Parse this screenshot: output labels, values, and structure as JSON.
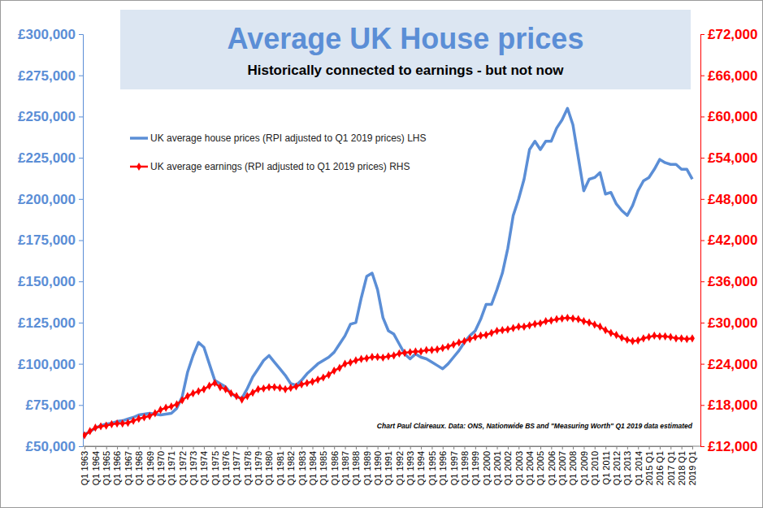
{
  "chart_data": {
    "type": "line",
    "title": "Average UK House prices",
    "subtitle": "Historically connected to earnings - but not now",
    "annotation": "Chart Paul Claireaux. Data: ONS, Nationwide BS and \"Measuring Worth\" Q1 2019 data estimated",
    "grid": false,
    "legend": "upper left",
    "xlim": [
      1963,
      2019
    ],
    "xticks": [
      {
        "value": 1963,
        "label": "Q1 1963"
      },
      {
        "value": 1964,
        "label": "Q1 1964"
      },
      {
        "value": 1965,
        "label": "Q1 1965"
      },
      {
        "value": 1966,
        "label": "Q1 1966"
      },
      {
        "value": 1967,
        "label": "Q1 1967"
      },
      {
        "value": 1968,
        "label": "Q1 1968"
      },
      {
        "value": 1969,
        "label": "Q1 1969"
      },
      {
        "value": 1970,
        "label": "Q1 1970"
      },
      {
        "value": 1971,
        "label": "Q1 1971"
      },
      {
        "value": 1972,
        "label": "Q1 1972"
      },
      {
        "value": 1973,
        "label": "Q1 1973"
      },
      {
        "value": 1974,
        "label": "Q1 1974"
      },
      {
        "value": 1975,
        "label": "Q1 1975"
      },
      {
        "value": 1976,
        "label": "Q1 1976"
      },
      {
        "value": 1977,
        "label": "Q1 1977"
      },
      {
        "value": 1978,
        "label": "Q1 1978"
      },
      {
        "value": 1979,
        "label": "Q1 1979"
      },
      {
        "value": 1980,
        "label": "Q1 1980"
      },
      {
        "value": 1981,
        "label": "Q1 1981"
      },
      {
        "value": 1982,
        "label": "Q1 1982"
      },
      {
        "value": 1983,
        "label": "Q1 1983"
      },
      {
        "value": 1984,
        "label": "Q1 1984"
      },
      {
        "value": 1985,
        "label": "Q1 1985"
      },
      {
        "value": 1986,
        "label": "Q1 1986"
      },
      {
        "value": 1987,
        "label": "Q1 1987"
      },
      {
        "value": 1988,
        "label": "Q1 1988"
      },
      {
        "value": 1989,
        "label": "Q1 1989"
      },
      {
        "value": 1990,
        "label": "Q1 1990"
      },
      {
        "value": 1991,
        "label": "Q1 1991"
      },
      {
        "value": 1992,
        "label": "Q1 1992"
      },
      {
        "value": 1993,
        "label": "Q1 1993"
      },
      {
        "value": 1994,
        "label": "Q1 1994"
      },
      {
        "value": 1995,
        "label": "Q1 1995"
      },
      {
        "value": 1996,
        "label": "Q1 1996"
      },
      {
        "value": 1997,
        "label": "Q1 1997"
      },
      {
        "value": 1998,
        "label": "Q1 1998"
      },
      {
        "value": 1999,
        "label": "Q1 1999"
      },
      {
        "value": 2000,
        "label": "Q1 2000"
      },
      {
        "value": 2001,
        "label": "Q1 2001"
      },
      {
        "value": 2002,
        "label": "Q1 2002"
      },
      {
        "value": 2003,
        "label": "Q1 2003"
      },
      {
        "value": 2004,
        "label": "Q1 2004"
      },
      {
        "value": 2005,
        "label": "Q1 2005"
      },
      {
        "value": 2006,
        "label": "Q1 2006"
      },
      {
        "value": 2007,
        "label": "Q1 2007"
      },
      {
        "value": 2008,
        "label": "Q1 2008"
      },
      {
        "value": 2009,
        "label": "Q1 2009"
      },
      {
        "value": 2010,
        "label": "Q1 2010"
      },
      {
        "value": 2011,
        "label": "Q1 2011"
      },
      {
        "value": 2012,
        "label": "Q1 2012"
      },
      {
        "value": 2013,
        "label": "Q1 2013"
      },
      {
        "value": 2014,
        "label": "Q1 2014"
      },
      {
        "value": 2015,
        "label": "2015 Q1"
      },
      {
        "value": 2016,
        "label": "2016 Q1"
      },
      {
        "value": 2017,
        "label": "2017 Q1"
      },
      {
        "value": 2018,
        "label": "2018 Q1"
      },
      {
        "value": 2019,
        "label": "2019 Q1"
      }
    ],
    "ylim": [
      50000,
      300000
    ],
    "yticks": [
      {
        "value": 50000,
        "label": "£50,000"
      },
      {
        "value": 75000,
        "label": "£75,000"
      },
      {
        "value": 100000,
        "label": "£100,000"
      },
      {
        "value": 125000,
        "label": "£125,000"
      },
      {
        "value": 150000,
        "label": "£150,000"
      },
      {
        "value": 175000,
        "label": "£175,000"
      },
      {
        "value": 200000,
        "label": "£200,000"
      },
      {
        "value": 225000,
        "label": "£225,000"
      },
      {
        "value": 250000,
        "label": "£250,000"
      },
      {
        "value": 275000,
        "label": "£275,000"
      },
      {
        "value": 300000,
        "label": "£300,000"
      }
    ],
    "y2lim": [
      12000,
      72000
    ],
    "y2ticks": [
      {
        "value": 12000,
        "label": "£12,000"
      },
      {
        "value": 18000,
        "label": "£18,000"
      },
      {
        "value": 24000,
        "label": "£24,000"
      },
      {
        "value": 30000,
        "label": "£30,000"
      },
      {
        "value": 36000,
        "label": "£36,000"
      },
      {
        "value": 42000,
        "label": "£42,000"
      },
      {
        "value": 48000,
        "label": "£48,000"
      },
      {
        "value": 54000,
        "label": "£54,000"
      },
      {
        "value": 60000,
        "label": "£60,000"
      },
      {
        "value": 66000,
        "label": "£66,000"
      },
      {
        "value": 72000,
        "label": "£72,000"
      }
    ],
    "x": [
      1963,
      1963.5,
      1964,
      1964.5,
      1965,
      1965.5,
      1966,
      1966.5,
      1967,
      1967.5,
      1968,
      1968.5,
      1969,
      1969.5,
      1970,
      1970.5,
      1971,
      1971.5,
      1972,
      1972.5,
      1973,
      1973.5,
      1974,
      1974.5,
      1975,
      1975.5,
      1976,
      1976.5,
      1977,
      1977.5,
      1978,
      1978.5,
      1979,
      1979.5,
      1980,
      1980.5,
      1981,
      1981.5,
      1982,
      1982.5,
      1983,
      1983.5,
      1984,
      1984.5,
      1985,
      1985.5,
      1986,
      1986.5,
      1987,
      1987.5,
      1988,
      1988.5,
      1989,
      1989.5,
      1990,
      1990.5,
      1991,
      1991.5,
      1992,
      1992.5,
      1993,
      1993.5,
      1994,
      1994.5,
      1995,
      1995.5,
      1996,
      1996.5,
      1997,
      1997.5,
      1998,
      1998.5,
      1999,
      1999.5,
      2000,
      2000.5,
      2001,
      2001.5,
      2002,
      2002.5,
      2003,
      2003.5,
      2004,
      2004.5,
      2005,
      2005.5,
      2006,
      2006.5,
      2007,
      2007.5,
      2008,
      2008.5,
      2009,
      2009.5,
      2010,
      2010.5,
      2011,
      2011.5,
      2012,
      2012.5,
      2013,
      2013.5,
      2014,
      2014.5,
      2015,
      2015.5,
      2016,
      2016.5,
      2017,
      2017.5,
      2018,
      2018.5,
      2019
    ],
    "series": [
      {
        "name": "UK average house prices (RPI adjusted to Q1 2019 prices) LHS",
        "color": "#5b8ed6",
        "axis": "y",
        "line_style": "solid",
        "values": [
          57000,
          59000,
          61000,
          62500,
          63500,
          64000,
          65000,
          65500,
          66500,
          67500,
          69000,
          69500,
          70000,
          69500,
          69000,
          69500,
          70000,
          73000,
          80000,
          95000,
          105000,
          113000,
          110000,
          100000,
          90000,
          88000,
          86000,
          82000,
          80000,
          79000,
          85000,
          92000,
          97000,
          102000,
          105000,
          101000,
          97000,
          93000,
          88000,
          87000,
          90000,
          94000,
          97000,
          100000,
          102000,
          104000,
          107000,
          112000,
          117000,
          124000,
          125000,
          140000,
          153000,
          155000,
          145000,
          128000,
          120000,
          118000,
          112000,
          106000,
          103000,
          106000,
          104000,
          103000,
          101000,
          99000,
          97000,
          100000,
          104000,
          108000,
          113000,
          117000,
          120000,
          127000,
          136000,
          136000,
          145000,
          155000,
          170000,
          190000,
          200000,
          212000,
          230000,
          235000,
          230000,
          235000,
          235000,
          243000,
          248000,
          255000,
          245000,
          225000,
          205000,
          212000,
          213000,
          216000,
          203000,
          204000,
          197000,
          193000,
          190000,
          196000,
          205000,
          211000,
          213000,
          218000,
          224000,
          222000,
          221000,
          221000,
          218000,
          218000,
          212000
        ]
      },
      {
        "name": "UK average earnings (RPI adjusted to Q1 2019 prices) RHS",
        "color": "#ff0000",
        "axis": "y2",
        "line_style": "solid",
        "marker": "diamond",
        "values": [
          13600,
          14200,
          14700,
          14900,
          15000,
          15200,
          15300,
          15300,
          15400,
          15700,
          16000,
          16200,
          16400,
          16800,
          17300,
          17600,
          17800,
          18100,
          18700,
          19300,
          19700,
          20000,
          20300,
          20800,
          21200,
          20600,
          20300,
          19700,
          19300,
          18800,
          19300,
          19800,
          20300,
          20400,
          20600,
          20600,
          20500,
          20300,
          20500,
          20700,
          21000,
          21200,
          21400,
          21700,
          22000,
          22400,
          23000,
          23400,
          24000,
          24200,
          24500,
          24700,
          24800,
          25000,
          25000,
          24900,
          25100,
          25200,
          25500,
          25600,
          25700,
          25800,
          25800,
          26000,
          26000,
          26100,
          26300,
          26500,
          26800,
          27100,
          27300,
          27600,
          27900,
          28100,
          28200,
          28500,
          28800,
          28900,
          29000,
          29200,
          29400,
          29400,
          29600,
          29800,
          29900,
          30200,
          30300,
          30500,
          30600,
          30700,
          30600,
          30500,
          30200,
          30000,
          29700,
          29400,
          28900,
          28500,
          28200,
          27800,
          27500,
          27300,
          27400,
          27700,
          27900,
          28100,
          28000,
          28000,
          27900,
          27700,
          27700,
          27600,
          27700
        ]
      }
    ]
  }
}
